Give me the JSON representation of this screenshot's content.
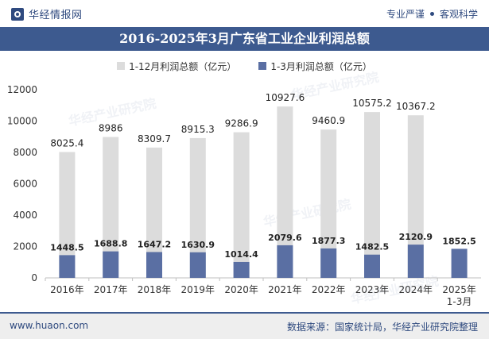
{
  "header": {
    "brand": "华经情报网",
    "slogan_left": "专业严谨",
    "slogan_right": "客观科学"
  },
  "footer": {
    "url": "www.huaon.com",
    "source": "数据来源：国家统计局，华经产业研究院整理"
  },
  "colors": {
    "brand": "#2f4a7f",
    "title_bar": "#3d5a8f",
    "series_full_year": "#dcdcdc",
    "series_q1": "#5a6fa3",
    "footer_bg": "#eeeeee"
  },
  "chart_data": {
    "type": "bar",
    "title": "2016-2025年3月广东省工业企业利润总额",
    "categories": [
      "2016年",
      "2017年",
      "2018年",
      "2019年",
      "2020年",
      "2021年",
      "2022年",
      "2023年",
      "2024年",
      "2025年\n1-3月"
    ],
    "series": [
      {
        "name": "1-12月利润总额（亿元）",
        "values": [
          8025.4,
          8986,
          8309.7,
          8915.3,
          9286.9,
          10927.6,
          9460.9,
          10575.2,
          10367.2,
          null
        ],
        "labels": [
          "8025.4",
          "8986",
          "8309.7",
          "8915.3",
          "9286.9",
          "10927.6",
          "9460.9",
          "10575.2",
          "10367.2",
          ""
        ]
      },
      {
        "name": "1-3月利润总额（亿元）",
        "values": [
          1448.5,
          1688.8,
          1647.2,
          1630.9,
          1014.4,
          2079.6,
          1877.3,
          1482.5,
          2120.9,
          1852.5
        ],
        "labels": [
          "1448.5",
          "1688.8",
          "1647.2",
          "1630.9",
          "1014.4",
          "2079.6",
          "1877.3",
          "1482.5",
          "2120.9",
          "1852.5"
        ]
      }
    ],
    "yticks": [
      "0",
      "2000",
      "4000",
      "6000",
      "8000",
      "10000",
      "12000"
    ],
    "ylim": [
      0,
      12000
    ],
    "xlabel": "",
    "ylabel": "",
    "grid": false,
    "legend_position": "top-center"
  }
}
